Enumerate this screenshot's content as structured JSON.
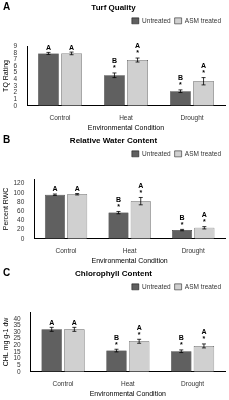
{
  "chart_data": [
    {
      "type": "bar",
      "title": "Turf Quality",
      "annotations": [
        "A"
      ],
      "xlabel": "Environmental Condition",
      "ylabel": "TQ Rating",
      "categories": [
        "Control",
        "Heat",
        "Drought"
      ],
      "series": [
        {
          "name": "Untreated",
          "color": "#606060",
          "values": [
            7.9,
            4.6,
            2.2
          ],
          "errors": [
            0.15,
            0.35,
            0.2
          ],
          "annotations": [
            [
              "A"
            ],
            [
              "*",
              "B"
            ],
            [
              "*",
              "B"
            ]
          ]
        },
        {
          "name": "ASM treated",
          "color": "#d0d0d0",
          "values": [
            7.9,
            6.9,
            3.7
          ],
          "errors": [
            0.2,
            0.3,
            0.55
          ],
          "annotations": [
            [
              "A"
            ],
            [
              "*",
              "A"
            ],
            [
              "*",
              "A"
            ]
          ]
        }
      ],
      "ylim": [
        0,
        9
      ],
      "yticks": [
        0,
        1,
        2,
        3,
        4,
        5,
        6,
        7,
        8,
        9
      ],
      "grid": false,
      "legend": "upper right"
    },
    {
      "type": "bar",
      "title": "Relative Water Content",
      "annotations": [
        "B"
      ],
      "xlabel": "Environmental Condition",
      "ylabel": "Percent RWC",
      "categories": [
        "Control",
        "Heat",
        "Drought"
      ],
      "series": [
        {
          "name": "Untreated",
          "color": "#606060",
          "values": [
            96,
            57,
            19
          ],
          "errors": [
            1.5,
            2.5,
            1.5
          ],
          "annotations": [
            [
              "A"
            ],
            [
              "*",
              "B"
            ],
            [
              "*",
              "B"
            ]
          ]
        },
        {
          "name": "ASM treated",
          "color": "#d0d0d0",
          "values": [
            97,
            82,
            24
          ],
          "errors": [
            1.5,
            8.0,
            2.5
          ],
          "annotations": [
            [
              "A"
            ],
            [
              "*",
              "A"
            ],
            [
              "*",
              "A"
            ]
          ]
        }
      ],
      "ylim": [
        0,
        130
      ],
      "yticks": [
        0,
        20,
        40,
        60,
        80,
        100,
        120
      ],
      "grid": false,
      "legend": "upper right"
    },
    {
      "type": "bar",
      "title": "Chlorophyll Content",
      "annotations": [
        "C"
      ],
      "xlabel": "Environmental Condition",
      "ylabel": "CHL mg g-1 dw",
      "categories": [
        "Control",
        "Heat",
        "Drought"
      ],
      "series": [
        {
          "name": "Untreated",
          "color": "#606060",
          "values": [
            32,
            16,
            15.5
          ],
          "errors": [
            1.5,
            1.0,
            1.0
          ],
          "annotations": [
            [
              "A"
            ],
            [
              "*",
              "B"
            ],
            [
              "*",
              "B"
            ]
          ]
        },
        {
          "name": "ASM treated",
          "color": "#d0d0d0",
          "values": [
            32,
            23,
            19.5
          ],
          "errors": [
            1.5,
            1.5,
            1.5
          ],
          "annotations": [
            [
              "A"
            ],
            [
              "*",
              "A"
            ],
            [
              "*",
              "A"
            ]
          ]
        }
      ],
      "ylim": [
        0,
        45
      ],
      "yticks": [
        0,
        5,
        10,
        15,
        20,
        25,
        30,
        35,
        40
      ],
      "grid": false,
      "legend": "upper right"
    }
  ]
}
